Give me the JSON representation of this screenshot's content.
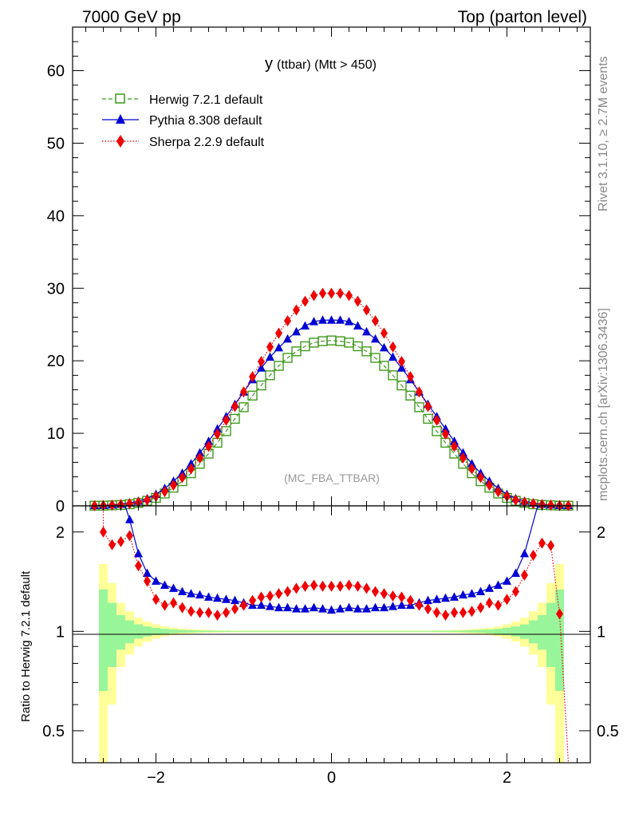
{
  "header": {
    "left_label": "7000 GeV pp",
    "right_label": "Top (parton level)"
  },
  "side": {
    "rivet_label": "Rivet 3.1.10, ≥ 2.7M events",
    "source_label": "mcplots.cern.ch [arXiv:1306.3436]"
  },
  "plot_title_main": "y",
  "plot_title_sub": "(ttbar) (Mtt > 450)",
  "watermark": "(MC_FBA_TTBAR)",
  "colors": {
    "herwig": "#3f9a1c",
    "pythia": "#0000d4",
    "sherpa": "#ee0000",
    "band_inner": "#99f599",
    "band_outer": "#ffff99"
  },
  "chart_data": [
    {
      "type": "line",
      "panel": "main",
      "xlim": [
        -2.95,
        2.95
      ],
      "ylim": [
        0,
        66
      ],
      "yticks": [
        0,
        10,
        20,
        30,
        40,
        50,
        60
      ],
      "ytick_labels": [
        "0",
        "10",
        "20",
        "30",
        "40",
        "50",
        "60"
      ],
      "legend_position": "top-left",
      "x": [
        -2.7,
        -2.6,
        -2.5,
        -2.4,
        -2.3,
        -2.2,
        -2.1,
        -2.0,
        -1.9,
        -1.8,
        -1.7,
        -1.6,
        -1.5,
        -1.4,
        -1.3,
        -1.2,
        -1.1,
        -1.0,
        -0.9,
        -0.8,
        -0.7,
        -0.6,
        -0.5,
        -0.4,
        -0.3,
        -0.2,
        -0.1,
        0.0,
        0.1,
        0.2,
        0.3,
        0.4,
        0.5,
        0.6,
        0.7,
        0.8,
        0.9,
        1.0,
        1.1,
        1.2,
        1.3,
        1.4,
        1.5,
        1.6,
        1.7,
        1.8,
        1.9,
        2.0,
        2.1,
        2.2,
        2.3,
        2.4,
        2.5,
        2.6,
        2.7
      ],
      "series": [
        {
          "name": "Herwig 7.2.1 default",
          "marker": "open-square",
          "line": "dashed",
          "values": [
            0.02,
            0.03,
            0.07,
            0.12,
            0.22,
            0.4,
            0.7,
            1.1,
            1.7,
            2.5,
            3.4,
            4.5,
            5.8,
            7.2,
            8.7,
            10.3,
            12.0,
            13.6,
            15.2,
            16.6,
            18.0,
            19.3,
            20.4,
            21.3,
            22.0,
            22.5,
            22.7,
            22.8,
            22.7,
            22.5,
            22.0,
            21.3,
            20.4,
            19.3,
            18.0,
            16.6,
            15.2,
            13.6,
            12.0,
            10.3,
            8.7,
            7.2,
            5.8,
            4.5,
            3.4,
            2.5,
            1.7,
            1.1,
            0.7,
            0.4,
            0.22,
            0.12,
            0.07,
            0.03,
            0.02
          ]
        },
        {
          "name": "Pythia 8.308 default",
          "marker": "filled-triangle",
          "line": "solid",
          "values": [
            0.04,
            0.07,
            0.13,
            0.22,
            0.4,
            0.65,
            1.0,
            1.6,
            2.4,
            3.4,
            4.5,
            5.8,
            7.3,
            8.9,
            10.6,
            12.3,
            14.0,
            15.7,
            17.4,
            19.0,
            20.5,
            21.8,
            23.0,
            24.0,
            24.8,
            25.4,
            25.6,
            25.6,
            25.6,
            25.4,
            24.8,
            24.0,
            23.0,
            21.8,
            20.5,
            19.0,
            17.4,
            15.7,
            14.0,
            12.3,
            10.6,
            8.9,
            7.3,
            5.8,
            4.5,
            3.4,
            2.4,
            1.6,
            1.0,
            0.65,
            0.4,
            0.22,
            0.13,
            0.07,
            0.04
          ]
        },
        {
          "name": "Sherpa 2.2.9 default",
          "marker": "filled-diamond",
          "line": "dotted",
          "values": [
            0.03,
            0.05,
            0.1,
            0.18,
            0.3,
            0.5,
            0.8,
            1.3,
            1.95,
            2.85,
            3.9,
            5.1,
            6.6,
            8.2,
            9.9,
            11.8,
            13.7,
            15.7,
            17.8,
            19.9,
            21.9,
            23.8,
            25.5,
            27.0,
            28.2,
            29.0,
            29.3,
            29.3,
            29.3,
            29.0,
            28.2,
            27.0,
            25.5,
            23.8,
            21.9,
            19.9,
            17.8,
            15.7,
            13.7,
            11.8,
            9.9,
            8.2,
            6.6,
            5.1,
            3.9,
            2.85,
            1.95,
            1.3,
            0.8,
            0.5,
            0.3,
            0.18,
            0.1,
            0.05,
            0.03
          ]
        }
      ]
    },
    {
      "type": "line",
      "panel": "ratio",
      "ylabel": "Ratio to Herwig 7.2.1 default",
      "xlim": [
        -2.95,
        2.95
      ],
      "ylim": [
        0.4,
        2.4
      ],
      "yticks": [
        0.5,
        1,
        2
      ],
      "ytick_labels": [
        "0.5",
        "1",
        "2"
      ],
      "xticks": [
        -2,
        0,
        2
      ],
      "xtick_labels": [
        "−2",
        "0",
        "2"
      ],
      "x": [
        -2.6,
        -2.5,
        -2.4,
        -2.3,
        -2.2,
        -2.1,
        -2.0,
        -1.9,
        -1.8,
        -1.7,
        -1.6,
        -1.5,
        -1.4,
        -1.3,
        -1.2,
        -1.1,
        -1.0,
        -0.9,
        -0.8,
        -0.7,
        -0.6,
        -0.5,
        -0.4,
        -0.3,
        -0.2,
        -0.1,
        0.0,
        0.1,
        0.2,
        0.3,
        0.4,
        0.5,
        0.6,
        0.7,
        0.8,
        0.9,
        1.0,
        1.1,
        1.2,
        1.3,
        1.4,
        1.5,
        1.6,
        1.7,
        1.8,
        1.9,
        2.0,
        2.1,
        2.2,
        2.3,
        2.4,
        2.5,
        2.6
      ],
      "band_inner_halfwidth": [
        0.34,
        0.22,
        0.12,
        0.08,
        0.05,
        0.035,
        0.025,
        0.018,
        0.013,
        0.01,
        0.008,
        0.006,
        0.005,
        0.004,
        0.004,
        0.003,
        0.003,
        0.003,
        0.003,
        0.003,
        0.003,
        0.003,
        0.003,
        0.003,
        0.003,
        0.003,
        0.003,
        0.003,
        0.003,
        0.003,
        0.003,
        0.003,
        0.003,
        0.003,
        0.003,
        0.003,
        0.003,
        0.003,
        0.004,
        0.004,
        0.005,
        0.006,
        0.008,
        0.01,
        0.013,
        0.018,
        0.025,
        0.035,
        0.05,
        0.08,
        0.12,
        0.22,
        0.34
      ],
      "band_outer_halfwidth": [
        0.6,
        0.4,
        0.22,
        0.15,
        0.1,
        0.07,
        0.05,
        0.035,
        0.026,
        0.02,
        0.016,
        0.012,
        0.01,
        0.008,
        0.007,
        0.006,
        0.006,
        0.006,
        0.006,
        0.006,
        0.006,
        0.006,
        0.006,
        0.006,
        0.006,
        0.006,
        0.006,
        0.006,
        0.006,
        0.006,
        0.006,
        0.006,
        0.006,
        0.006,
        0.006,
        0.006,
        0.006,
        0.006,
        0.007,
        0.008,
        0.01,
        0.012,
        0.016,
        0.02,
        0.026,
        0.035,
        0.05,
        0.07,
        0.1,
        0.15,
        0.22,
        0.4,
        0.6
      ],
      "series": [
        {
          "name": "Pythia 8.308 default",
          "marker": "filled-triangle",
          "line": "solid",
          "x": [
            -2.3,
            -2.2,
            -2.1,
            -2.0,
            -1.9,
            -1.8,
            -1.7,
            -1.6,
            -1.5,
            -1.4,
            -1.3,
            -1.2,
            -1.1,
            -1.0,
            -0.9,
            -0.8,
            -0.7,
            -0.6,
            -0.5,
            -0.4,
            -0.3,
            -0.2,
            -0.1,
            0.0,
            0.1,
            0.2,
            0.3,
            0.4,
            0.5,
            0.6,
            0.7,
            0.8,
            0.9,
            1.0,
            1.1,
            1.2,
            1.3,
            1.4,
            1.5,
            1.6,
            1.7,
            1.8,
            1.9,
            2.0,
            2.1,
            2.2
          ],
          "values": [
            2.18,
            1.72,
            1.5,
            1.42,
            1.38,
            1.35,
            1.32,
            1.3,
            1.29,
            1.27,
            1.26,
            1.25,
            1.24,
            1.22,
            1.2,
            1.2,
            1.19,
            1.18,
            1.18,
            1.17,
            1.17,
            1.18,
            1.17,
            1.16,
            1.17,
            1.18,
            1.17,
            1.17,
            1.18,
            1.18,
            1.19,
            1.2,
            1.2,
            1.22,
            1.24,
            1.25,
            1.26,
            1.27,
            1.29,
            1.3,
            1.32,
            1.35,
            1.38,
            1.42,
            1.5,
            1.72
          ]
        },
        {
          "name": "Sherpa 2.2.9 default",
          "marker": "filled-diamond",
          "line": "dotted",
          "x": [
            -2.6,
            -2.5,
            -2.4,
            -2.3,
            -2.2,
            -2.1,
            -2.0,
            -1.9,
            -1.8,
            -1.7,
            -1.6,
            -1.5,
            -1.4,
            -1.3,
            -1.2,
            -1.1,
            -1.0,
            -0.9,
            -0.8,
            -0.7,
            -0.6,
            -0.5,
            -0.4,
            -0.3,
            -0.2,
            -0.1,
            0.0,
            0.1,
            0.2,
            0.3,
            0.4,
            0.5,
            0.6,
            0.7,
            0.8,
            0.9,
            1.0,
            1.1,
            1.2,
            1.3,
            1.4,
            1.5,
            1.6,
            1.7,
            1.8,
            1.9,
            2.0,
            2.1,
            2.2,
            2.3,
            2.4,
            2.5,
            2.6
          ],
          "values": [
            2.0,
            1.83,
            1.87,
            1.95,
            1.58,
            1.42,
            1.25,
            1.2,
            1.22,
            1.18,
            1.15,
            1.14,
            1.14,
            1.12,
            1.14,
            1.17,
            1.2,
            1.24,
            1.27,
            1.28,
            1.3,
            1.32,
            1.35,
            1.37,
            1.38,
            1.37,
            1.37,
            1.37,
            1.38,
            1.37,
            1.35,
            1.32,
            1.3,
            1.28,
            1.27,
            1.24,
            1.2,
            1.17,
            1.14,
            1.12,
            1.14,
            1.14,
            1.15,
            1.18,
            1.22,
            1.2,
            1.25,
            1.32,
            1.48,
            1.7,
            1.85,
            1.82,
            1.13
          ]
        }
      ]
    }
  ]
}
